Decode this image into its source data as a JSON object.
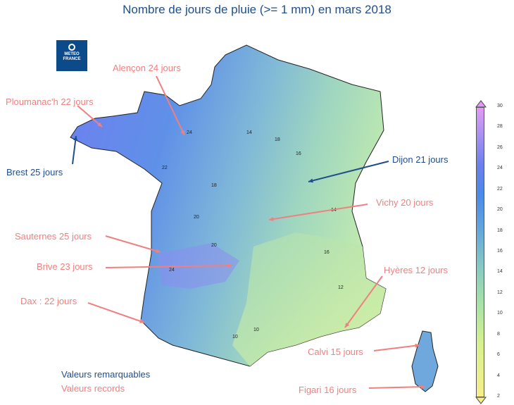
{
  "title": "Nombre de jours de pluie (>= 1 mm) en mars 2018",
  "logo": {
    "line1": "METEO",
    "line2": "FRANCE"
  },
  "records": [
    {
      "id": "alencon",
      "text": "Alençon 24 jours"
    },
    {
      "id": "ploumanach",
      "text": "Ploumanac'h 22 jours"
    },
    {
      "id": "vichy",
      "text": "Vichy 20 jours"
    },
    {
      "id": "sauternes",
      "text": "Sauternes 25 jours"
    },
    {
      "id": "brive",
      "text": "Brive 23 jours"
    },
    {
      "id": "hyeres",
      "text": "Hyères 12 jours"
    },
    {
      "id": "dax",
      "text": "Dax : 22 jours"
    },
    {
      "id": "calvi",
      "text": "Calvi 15 jours"
    },
    {
      "id": "figari",
      "text": "Figari 16 jours"
    }
  ],
  "remarkable": [
    {
      "id": "brest",
      "text": "Brest 25 jours"
    },
    {
      "id": "dijon",
      "text": "Dijon 21 jours"
    }
  ],
  "legend": {
    "remarkable": "Valeurs remarquables",
    "records": "Valeurs records"
  },
  "colorbar": {
    "ticks": [
      "30",
      "28",
      "26",
      "24",
      "22",
      "20",
      "18",
      "16",
      "14",
      "12",
      "10",
      "8",
      "6",
      "4",
      "2"
    ],
    "min": 2,
    "max": 30
  },
  "contour_labels": [
    "24",
    "22",
    "20",
    "18",
    "16",
    "14",
    "12",
    "10",
    "18",
    "14",
    "16",
    "10",
    "24",
    "20"
  ],
  "colors": {
    "record": "#f08080",
    "remarkable": "#1f4e8c"
  }
}
